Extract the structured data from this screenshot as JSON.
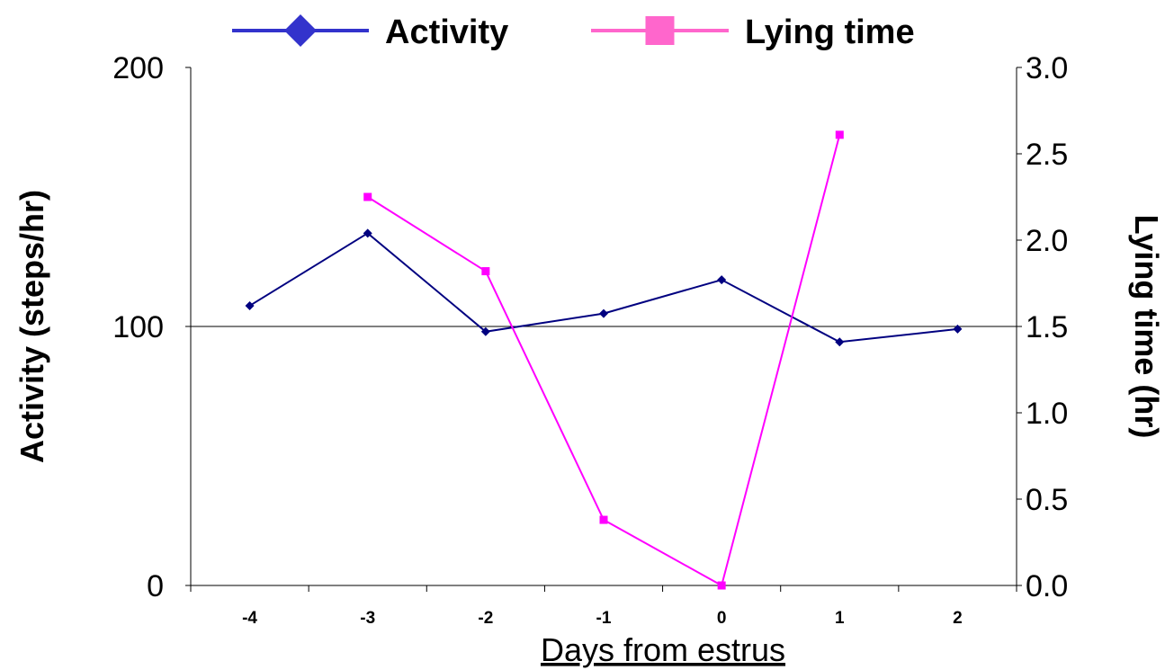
{
  "chart_data": {
    "type": "line",
    "title": "",
    "xlabel": "Days from estrus",
    "ylabel_left": "Activity (steps/hr)",
    "ylabel_right": "Lying time (hr)",
    "categories": [
      "-4",
      "-3",
      "-2",
      "-1",
      "0",
      "1",
      "2"
    ],
    "y_left_lim": [
      0,
      200
    ],
    "y_left_ticks": [
      "0",
      "100",
      "200"
    ],
    "y_right_lim": [
      0,
      3
    ],
    "y_right_ticks": [
      "0.0",
      "0.5",
      "1.0",
      "1.5",
      "2.0",
      "2.5",
      "3.0"
    ],
    "legend_position": "top",
    "reference_line": 100,
    "series": [
      {
        "name": "Activity",
        "axis": "left",
        "color": "#000080",
        "legend_color": "#3333cc",
        "marker": "diamond",
        "values": [
          108,
          136,
          98,
          105,
          118,
          94,
          99
        ]
      },
      {
        "name": "Lying time",
        "axis": "right",
        "color": "#ff00ff",
        "legend_color": "#ff66cc",
        "marker": "square",
        "values": [
          null,
          2.25,
          1.82,
          0.38,
          0.0,
          2.61,
          null
        ]
      }
    ]
  }
}
